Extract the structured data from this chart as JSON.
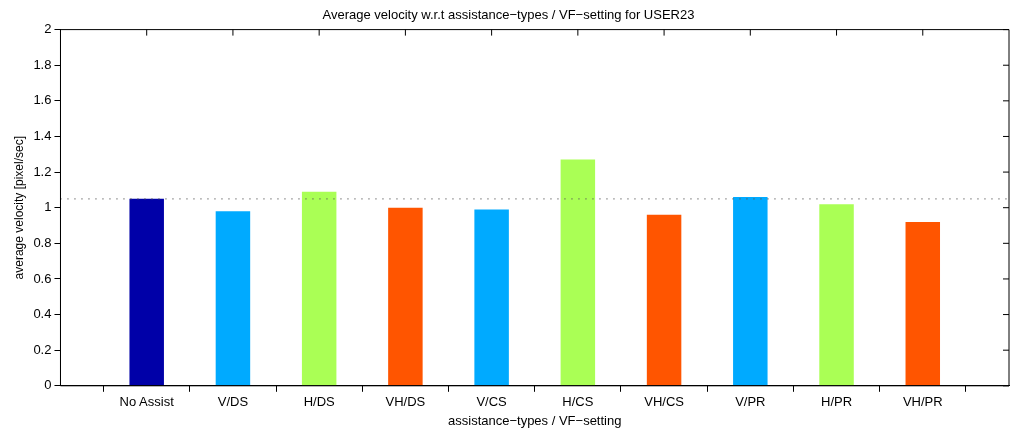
{
  "chart_data": {
    "type": "bar",
    "title": "Average velocity w.r.t assistance−types / VF−setting for USER23",
    "xlabel": "assistance−types / VF−setting",
    "ylabel": "average velocity [pixel/sec]",
    "categories": [
      "No Assist",
      "V/DS",
      "H/DS",
      "VH/DS",
      "V/CS",
      "H/CS",
      "VH/CS",
      "V/PR",
      "H/PR",
      "VH/PR"
    ],
    "values": [
      1.05,
      0.98,
      1.09,
      1.0,
      0.99,
      1.27,
      0.96,
      1.06,
      1.02,
      0.92
    ],
    "colors": [
      "#0000a8",
      "#00aaff",
      "#aaff55",
      "#ff5500",
      "#00aaff",
      "#aaff55",
      "#ff5500",
      "#00aaff",
      "#aaff55",
      "#ff5500"
    ],
    "ylim": [
      0,
      2
    ],
    "yticks": [
      0,
      0.2,
      0.4,
      0.6,
      0.8,
      1,
      1.2,
      1.4,
      1.6,
      1.8,
      2
    ],
    "ref_lines": [
      {
        "axis": "y",
        "value": 1.05,
        "color": "#555555",
        "line_style": "dotted"
      }
    ],
    "grid": false,
    "legend": false
  }
}
